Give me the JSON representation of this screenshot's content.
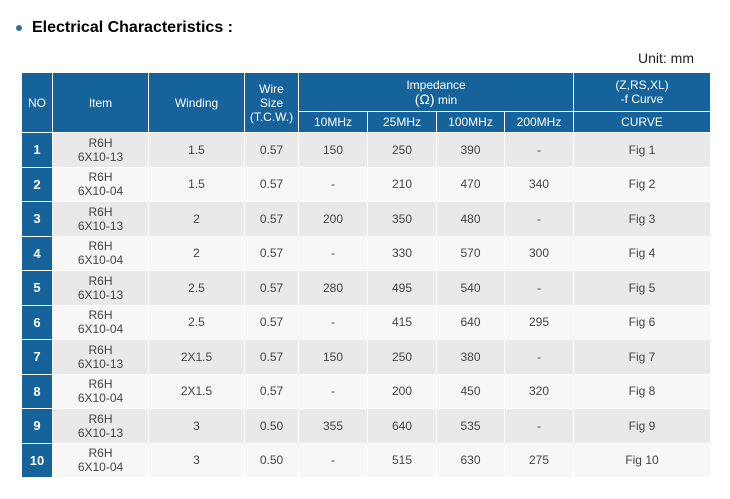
{
  "heading": "Electrical Characteristics :",
  "unit": "Unit:  mm",
  "headers": {
    "no": "NO",
    "item": "Item",
    "winding": "Winding",
    "wire_line1": "Wire",
    "wire_line2": "Size",
    "wire_line3": "(T.C.W.)",
    "impedance_line1": "Impedance",
    "impedance_omega": "(Ω)",
    "impedance_min": "min",
    "curve_line1": "(Z,RS,XL)",
    "curve_line2": "-f Curve",
    "freq": [
      "10MHz",
      "25MHz",
      "100MHz",
      "200MHz"
    ],
    "curve_sub": "CURVE"
  },
  "rows": [
    {
      "no": "1",
      "item1": "R6H",
      "item2": "6X10-13",
      "winding": "1.5",
      "wire": "0.57",
      "f10": "150",
      "f25": "250",
      "f100": "390",
      "f200": "-",
      "curve": "Fig 1"
    },
    {
      "no": "2",
      "item1": "R6H",
      "item2": "6X10-04",
      "winding": "1.5",
      "wire": "0.57",
      "f10": "-",
      "f25": "210",
      "f100": "470",
      "f200": "340",
      "curve": "Fig 2"
    },
    {
      "no": "3",
      "item1": "R6H",
      "item2": "6X10-13",
      "winding": "2",
      "wire": "0.57",
      "f10": "200",
      "f25": "350",
      "f100": "480",
      "f200": "-",
      "curve": "Fig 3"
    },
    {
      "no": "4",
      "item1": "R6H",
      "item2": "6X10-04",
      "winding": "2",
      "wire": "0.57",
      "f10": "-",
      "f25": "330",
      "f100": "570",
      "f200": "300",
      "curve": "Fig 4"
    },
    {
      "no": "5",
      "item1": "R6H",
      "item2": "6X10-13",
      "winding": "2.5",
      "wire": "0.57",
      "f10": "280",
      "f25": "495",
      "f100": "540",
      "f200": "-",
      "curve": "Fig 5"
    },
    {
      "no": "6",
      "item1": "R6H",
      "item2": "6X10-04",
      "winding": "2.5",
      "wire": "0.57",
      "f10": "-",
      "f25": "415",
      "f100": "640",
      "f200": "295",
      "curve": "Fig 6"
    },
    {
      "no": "7",
      "item1": "R6H",
      "item2": "6X10-13",
      "winding": "2X1.5",
      "wire": "0.57",
      "f10": "150",
      "f25": "250",
      "f100": "380",
      "f200": "-",
      "curve": "Fig 7"
    },
    {
      "no": "8",
      "item1": "R6H",
      "item2": "6X10-04",
      "winding": "2X1.5",
      "wire": "0.57",
      "f10": "-",
      "f25": "200",
      "f100": "450",
      "f200": "320",
      "curve": "Fig 8"
    },
    {
      "no": "9",
      "item1": "R6H",
      "item2": "6X10-13",
      "winding": "3",
      "wire": "0.50",
      "f10": "355",
      "f25": "640",
      "f100": "535",
      "f200": "-",
      "curve": "Fig 9"
    },
    {
      "no": "10",
      "item1": "R6H",
      "item2": "6X10-04",
      "winding": "3",
      "wire": "0.50",
      "f10": "-",
      "f25": "515",
      "f100": "630",
      "f200": "275",
      "curve": "Fig 10"
    }
  ]
}
